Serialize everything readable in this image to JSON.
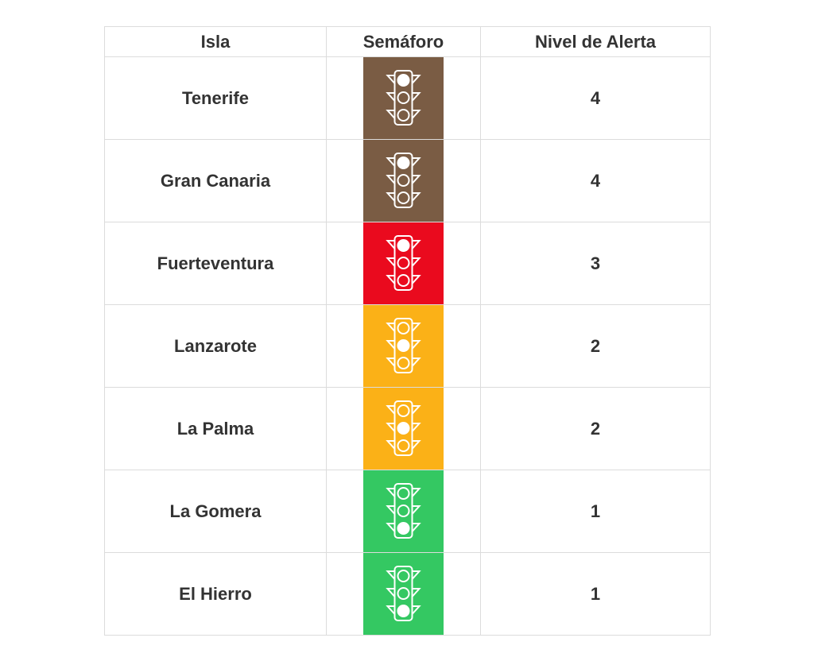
{
  "table": {
    "header": [
      "Isla",
      "Semáforo",
      "Nivel de Alerta"
    ],
    "rows": [
      {
        "isla": "Tenerife",
        "color": "#7a5c44",
        "lit": "top",
        "nivel": 4
      },
      {
        "isla": "Gran Canaria",
        "color": "#7a5c44",
        "lit": "top",
        "nivel": 4
      },
      {
        "isla": "Fuerteventura",
        "color": "#ea0a1e",
        "lit": "top",
        "nivel": 3
      },
      {
        "isla": "Lanzarote",
        "color": "#fbb117",
        "lit": "middle",
        "nivel": 2
      },
      {
        "isla": "La Palma",
        "color": "#fbb117",
        "lit": "middle",
        "nivel": 2
      },
      {
        "isla": "La Gomera",
        "color": "#34c862",
        "lit": "bottom",
        "nivel": 1
      },
      {
        "isla": "El Hierro",
        "color": "#34c862",
        "lit": "bottom",
        "nivel": 1
      }
    ]
  }
}
